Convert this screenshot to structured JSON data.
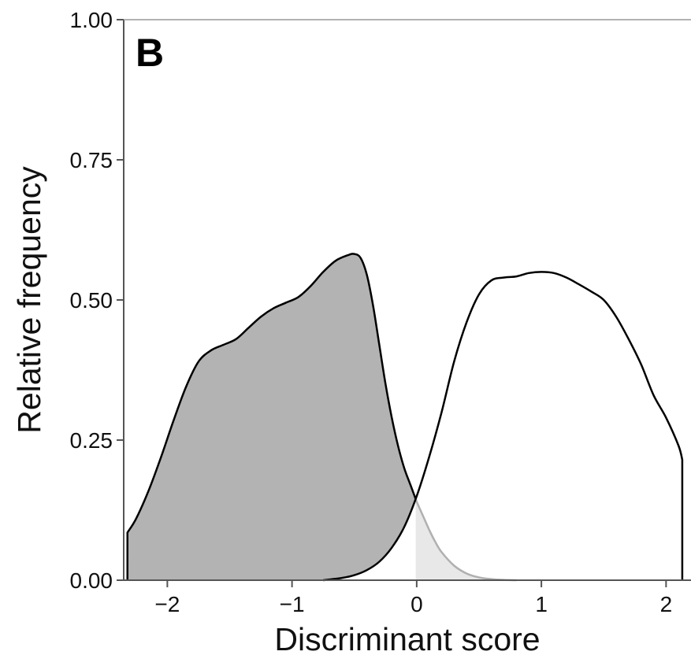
{
  "chart_data": {
    "type": "area",
    "panel_label": "B",
    "xlabel": "Discriminant score",
    "ylabel": "Relative frequency",
    "xlim": [
      -2.35,
      2.2
    ],
    "ylim": [
      0,
      1.0
    ],
    "x_ticks": [
      {
        "value": -2,
        "label": "−2"
      },
      {
        "value": -1,
        "label": "−1"
      },
      {
        "value": 0,
        "label": "0"
      },
      {
        "value": 1,
        "label": "1"
      },
      {
        "value": 2,
        "label": "2"
      }
    ],
    "y_ticks": [
      {
        "value": 0,
        "label": "0.00"
      },
      {
        "value": 0.25,
        "label": "0.25"
      },
      {
        "value": 0.5,
        "label": "0.50"
      },
      {
        "value": 0.75,
        "label": "0.75"
      },
      {
        "value": 1.0,
        "label": "1.00"
      }
    ],
    "grid": false,
    "series": [
      {
        "fill": "#b3b3b3",
        "stroke": "#000000",
        "x": [
          -2.32,
          -2.25,
          -2.15,
          -2.05,
          -1.95,
          -1.85,
          -1.75,
          -1.65,
          -1.55,
          -1.45,
          -1.35,
          -1.25,
          -1.15,
          -1.05,
          -0.95,
          -0.85,
          -0.75,
          -0.65,
          -0.55,
          -0.5,
          -0.45,
          -0.4,
          -0.35,
          -0.3,
          -0.25,
          -0.2,
          -0.15,
          -0.1,
          -0.05,
          0.0,
          0.05,
          0.1,
          0.15,
          0.2,
          0.3,
          0.4,
          0.5,
          0.6,
          0.7,
          0.8
        ],
        "y": [
          0.085,
          0.11,
          0.16,
          0.22,
          0.285,
          0.345,
          0.39,
          0.41,
          0.42,
          0.43,
          0.45,
          0.47,
          0.485,
          0.495,
          0.505,
          0.525,
          0.55,
          0.57,
          0.58,
          0.582,
          0.575,
          0.545,
          0.49,
          0.42,
          0.35,
          0.29,
          0.24,
          0.2,
          0.17,
          0.14,
          0.115,
          0.09,
          0.068,
          0.05,
          0.026,
          0.012,
          0.005,
          0.002,
          0.0005,
          0.0
        ]
      },
      {
        "fill": "#ffffff",
        "stroke": "#000000",
        "x": [
          -0.75,
          -0.6,
          -0.5,
          -0.4,
          -0.3,
          -0.2,
          -0.1,
          0.0,
          0.1,
          0.2,
          0.3,
          0.4,
          0.5,
          0.6,
          0.7,
          0.8,
          0.9,
          1.0,
          1.1,
          1.2,
          1.3,
          1.4,
          1.5,
          1.6,
          1.7,
          1.8,
          1.9,
          2.0,
          2.1,
          2.13
        ],
        "y": [
          0.0,
          0.004,
          0.009,
          0.018,
          0.033,
          0.058,
          0.095,
          0.15,
          0.22,
          0.3,
          0.39,
          0.46,
          0.51,
          0.535,
          0.54,
          0.542,
          0.548,
          0.55,
          0.548,
          0.54,
          0.528,
          0.515,
          0.5,
          0.47,
          0.43,
          0.385,
          0.33,
          0.29,
          0.24,
          0.215
        ]
      }
    ],
    "overlap_fill": "#e8e8e8",
    "overlap_stroke": "#b0b0b0",
    "axis_color": "#555555",
    "text_color": "#111111"
  }
}
